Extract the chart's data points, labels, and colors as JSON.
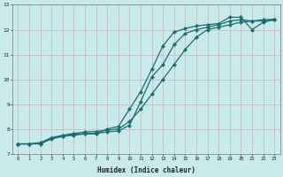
{
  "xlabel": "Humidex (Indice chaleur)",
  "bg_color": "#c8eaea",
  "grid_color": "#b0d8d8",
  "line_color": "#1a6e6e",
  "xlim": [
    -0.5,
    23.5
  ],
  "ylim": [
    7,
    13
  ],
  "yticks": [
    7,
    8,
    9,
    10,
    11,
    12,
    13
  ],
  "xticks": [
    0,
    1,
    2,
    3,
    4,
    5,
    6,
    7,
    8,
    9,
    10,
    11,
    12,
    13,
    14,
    15,
    16,
    17,
    18,
    19,
    20,
    21,
    22,
    23
  ],
  "lines": [
    {
      "x": [
        0,
        1,
        2,
        3,
        4,
        5,
        6,
        7,
        8,
        9,
        10,
        11,
        12,
        13,
        14,
        15,
        16,
        17,
        18,
        19,
        20,
        21,
        22,
        23
      ],
      "y": [
        7.4,
        7.4,
        7.45,
        7.65,
        7.75,
        7.82,
        7.88,
        7.9,
        7.95,
        8.0,
        8.3,
        8.8,
        9.4,
        10.0,
        10.6,
        11.2,
        11.7,
        12.0,
        12.1,
        12.2,
        12.3,
        12.35,
        12.4,
        12.42
      ]
    },
    {
      "x": [
        0,
        1,
        2,
        3,
        4,
        5,
        6,
        7,
        8,
        9,
        10,
        11,
        12,
        13,
        14,
        15,
        16,
        17,
        18,
        19,
        20,
        21,
        22,
        23
      ],
      "y": [
        7.4,
        7.4,
        7.4,
        7.6,
        7.7,
        7.75,
        7.8,
        7.8,
        8.0,
        8.1,
        8.8,
        9.5,
        10.4,
        11.35,
        11.9,
        12.05,
        12.15,
        12.2,
        12.25,
        12.5,
        12.5,
        12.0,
        12.3,
        12.4
      ]
    },
    {
      "x": [
        0,
        1,
        2,
        3,
        4,
        5,
        6,
        7,
        8,
        9,
        10,
        11,
        12,
        13,
        14,
        15,
        16,
        17,
        18,
        19,
        20,
        21,
        22,
        23
      ],
      "y": [
        7.4,
        7.4,
        7.42,
        7.62,
        7.72,
        7.77,
        7.82,
        7.82,
        7.88,
        7.92,
        8.15,
        9.1,
        10.1,
        10.6,
        11.4,
        11.85,
        12.0,
        12.1,
        12.2,
        12.35,
        12.4,
        12.35,
        12.35,
        12.4
      ]
    }
  ]
}
